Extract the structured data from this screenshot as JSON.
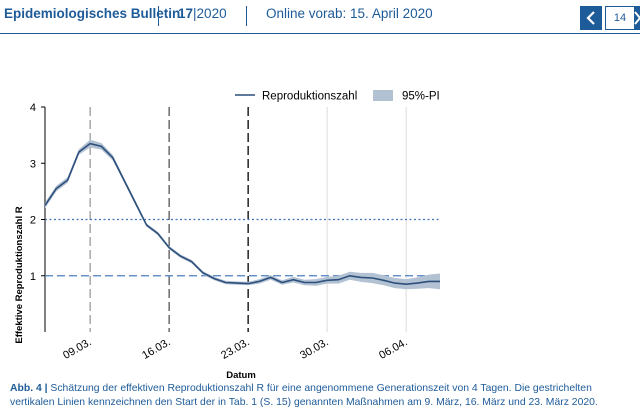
{
  "header": {
    "title": "Epidemiologisches Bulletin",
    "issue_number": "17",
    "issue_year": "2020",
    "online": "Online vorab: 15. April 2020",
    "page": "14",
    "prev_icon": "chevron-left-icon",
    "next_icon": "chevron-right-icon",
    "color": "#1e5b99"
  },
  "caption": {
    "label": "Abb. 4 |",
    "text": " Schätzung der effektiven Reproduktionszahl R für eine angenommene Generationszeit von 4 Tagen. Die gestrichelten vertikalen Linien kennzeichnen den Start der in Tab. 1 (S. 15) genannten Maßnahmen am 9. März, 16. März und 23. März 2020."
  },
  "chart_data": {
    "type": "line",
    "xlabel": "Datum",
    "ylabel": "Effektive Reproduktionszahl R",
    "ylim": [
      0,
      4
    ],
    "yticks": [
      1,
      2,
      3,
      4
    ],
    "xlim": [
      "2020-03-05",
      "2020-04-09"
    ],
    "xticks": [
      "09.03.",
      "16.03.",
      "23.03.",
      "30.03.",
      "06.04."
    ],
    "legend": {
      "position": "top",
      "line_label": "Reproduktionszahl",
      "band_label": "95%-PI"
    },
    "line_color": "#2c4f7c",
    "band_color": "#b3c2d3",
    "reference_lines": [
      {
        "y": 2,
        "style": "dotted",
        "color": "#3f6fb3"
      },
      {
        "y": 1,
        "style": "dashed",
        "color": "#4f7fc0"
      }
    ],
    "vertical_lines": [
      {
        "x": "2020-03-09",
        "style": "dashed",
        "color": "#9a9a9a"
      },
      {
        "x": "2020-03-16",
        "style": "dashed",
        "color": "#555555"
      },
      {
        "x": "2020-03-23",
        "style": "dashed",
        "color": "#000000"
      }
    ],
    "grid_x": [
      "2020-03-30",
      "2020-04-06"
    ],
    "series": [
      {
        "dates": [
          "2020-03-05",
          "2020-03-06",
          "2020-03-07",
          "2020-03-08",
          "2020-03-09",
          "2020-03-10",
          "2020-03-11",
          "2020-03-12",
          "2020-03-13",
          "2020-03-14",
          "2020-03-15",
          "2020-03-16",
          "2020-03-17",
          "2020-03-18",
          "2020-03-19",
          "2020-03-20",
          "2020-03-21",
          "2020-03-22",
          "2020-03-23",
          "2020-03-24",
          "2020-03-25",
          "2020-03-26",
          "2020-03-27",
          "2020-03-28",
          "2020-03-29",
          "2020-03-30",
          "2020-03-31",
          "2020-04-01",
          "2020-04-02",
          "2020-04-03",
          "2020-04-04",
          "2020-04-05",
          "2020-04-06",
          "2020-04-07",
          "2020-04-08",
          "2020-04-09"
        ],
        "values": [
          2.25,
          2.55,
          2.7,
          3.2,
          3.35,
          3.3,
          3.1,
          2.7,
          2.3,
          1.9,
          1.75,
          1.5,
          1.35,
          1.25,
          1.05,
          0.95,
          0.88,
          0.87,
          0.86,
          0.9,
          0.97,
          0.88,
          0.93,
          0.88,
          0.88,
          0.92,
          0.93,
          1.0,
          0.97,
          0.96,
          0.92,
          0.87,
          0.85,
          0.87,
          0.9,
          0.9
        ],
        "lower": [
          2.2,
          2.5,
          2.65,
          3.15,
          3.28,
          3.24,
          3.05,
          2.66,
          2.26,
          1.87,
          1.72,
          1.47,
          1.32,
          1.22,
          1.02,
          0.92,
          0.85,
          0.84,
          0.83,
          0.86,
          0.93,
          0.84,
          0.88,
          0.83,
          0.82,
          0.86,
          0.86,
          0.93,
          0.89,
          0.87,
          0.83,
          0.78,
          0.76,
          0.77,
          0.78,
          0.76
        ],
        "upper": [
          2.3,
          2.6,
          2.75,
          3.25,
          3.42,
          3.36,
          3.15,
          2.74,
          2.34,
          1.93,
          1.78,
          1.53,
          1.38,
          1.28,
          1.08,
          0.98,
          0.91,
          0.9,
          0.89,
          0.94,
          1.01,
          0.92,
          0.98,
          0.93,
          0.94,
          0.98,
          1.0,
          1.07,
          1.05,
          1.05,
          1.01,
          0.96,
          0.94,
          0.97,
          1.02,
          1.04
        ]
      }
    ]
  }
}
